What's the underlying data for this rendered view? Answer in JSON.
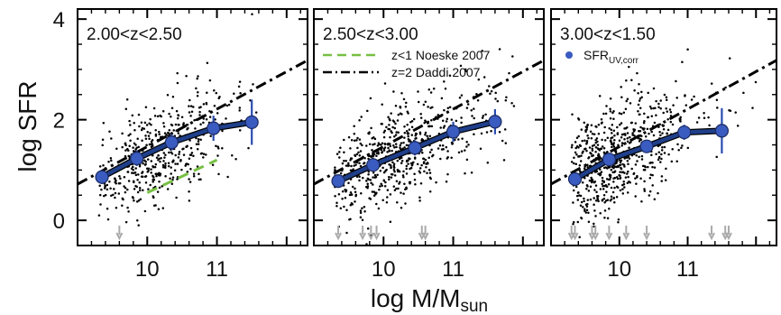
{
  "figure": {
    "ylabel": "log SFR",
    "xlabel_main": "log M/M",
    "xlabel_sub": "sun"
  },
  "styles": {
    "frame_color": "#000000",
    "mean_line_color": "#1f3f8a",
    "mean_marker_color": "#3a5bbf",
    "errorbar_color": "#2a4db0",
    "noeske_color": "#77c043",
    "daddi_color": "#000000",
    "scatter_color": "#000000",
    "arrow_color": "#aaaaaa"
  },
  "chart_data": [
    {
      "type": "scatter",
      "panel": 1,
      "label": "2.00<z<2.50",
      "xlim": [
        9.0,
        12.3
      ],
      "ylim": [
        -0.5,
        4.2
      ],
      "xticks": [
        10,
        11
      ],
      "yticks": [
        0,
        2,
        4
      ],
      "ytick_labels": [
        "0",
        "2",
        "4"
      ],
      "mean_series": {
        "x": [
          9.35,
          9.85,
          10.35,
          10.95,
          11.5
        ],
        "y": [
          0.86,
          1.23,
          1.55,
          1.83,
          1.95
        ],
        "yerr": [
          0.14,
          0.15,
          0.16,
          0.25,
          0.45
        ]
      },
      "noeske_line": {
        "x": [
          10.0,
          11.0
        ],
        "y": [
          0.55,
          1.2
        ]
      },
      "daddi_line": {
        "x": [
          9.0,
          12.3
        ],
        "y": [
          0.72,
          3.18
        ]
      },
      "cloud": {
        "x_center": 10.15,
        "x_spread": 0.55,
        "y_at_center": 1.35,
        "slope": 0.65,
        "y_spread": 0.5,
        "n": 480,
        "xmin": 9.3,
        "xmax": 11.6,
        "seed": 11
      },
      "upper_limit_arrows": [
        9.6
      ]
    },
    {
      "type": "scatter",
      "panel": 2,
      "label": "2.50<z<3.00",
      "legend": [
        {
          "label": "z<1 Noeske 2007",
          "style": "dashed",
          "color": "#77c043"
        },
        {
          "label": "z=2 Daddi 2007",
          "style": "dash-dot",
          "color": "#000000"
        }
      ],
      "xlim": [
        9.0,
        12.3
      ],
      "ylim": [
        -0.5,
        4.2
      ],
      "xticks": [
        10,
        11
      ],
      "mean_series": {
        "x": [
          9.35,
          9.85,
          10.45,
          11.0,
          11.6
        ],
        "y": [
          0.78,
          1.1,
          1.44,
          1.76,
          1.96
        ],
        "yerr": [
          0.1,
          0.12,
          0.15,
          0.2,
          0.25
        ]
      },
      "daddi_line": {
        "x": [
          9.0,
          12.3
        ],
        "y": [
          0.72,
          3.18
        ]
      },
      "cloud": {
        "x_center": 10.05,
        "x_spread": 0.6,
        "y_at_center": 1.2,
        "slope": 0.65,
        "y_spread": 0.5,
        "n": 600,
        "xmin": 9.3,
        "xmax": 11.9,
        "seed": 23
      },
      "upper_limit_arrows": [
        9.35,
        9.7,
        9.82,
        9.9,
        10.55,
        10.6
      ]
    },
    {
      "type": "scatter",
      "panel": 3,
      "label": "3.00<z<1.50",
      "legend": [
        {
          "label": "SFR",
          "label_sub": "UV,corr",
          "style": "marker",
          "color": "#3a5bbf"
        }
      ],
      "xlim": [
        9.0,
        12.3
      ],
      "ylim": [
        -0.5,
        4.2
      ],
      "xticks": [
        10,
        11
      ],
      "mean_series": {
        "x": [
          9.35,
          9.85,
          10.4,
          10.95,
          11.5
        ],
        "y": [
          0.82,
          1.21,
          1.47,
          1.75,
          1.78
        ],
        "yerr": [
          0.1,
          0.12,
          0.13,
          0.15,
          0.45
        ]
      },
      "daddi_line": {
        "x": [
          9.0,
          12.3
        ],
        "y": [
          0.72,
          3.18
        ]
      },
      "cloud": {
        "x_center": 9.85,
        "x_spread": 0.5,
        "y_at_center": 1.2,
        "slope": 0.65,
        "y_spread": 0.55,
        "n": 650,
        "xmin": 9.3,
        "xmax": 12.0,
        "seed": 37
      },
      "upper_limit_arrows": [
        9.3,
        9.35,
        9.6,
        9.65,
        9.85,
        10.1,
        10.4,
        11.35,
        11.55,
        11.6
      ]
    }
  ]
}
